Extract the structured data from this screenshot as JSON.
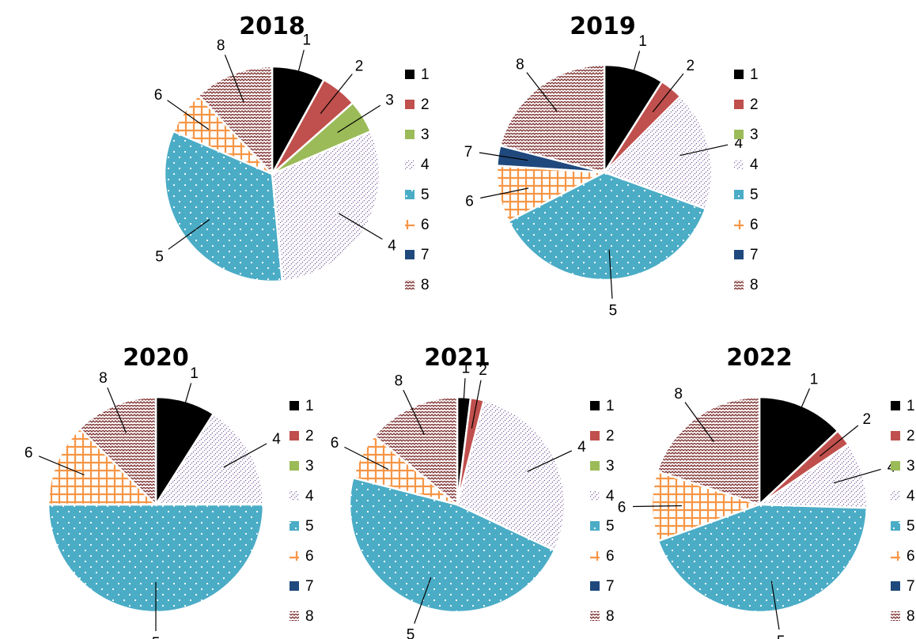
{
  "chart_data": [
    {
      "type": "pie",
      "title": "2018",
      "slices": [
        {
          "category": "1",
          "value": 8.0
        },
        {
          "category": "2",
          "value": 5.5
        },
        {
          "category": "3",
          "value": 5.0
        },
        {
          "category": "4",
          "value": 30.0
        },
        {
          "category": "5",
          "value": 33.0
        },
        {
          "category": "6",
          "value": 6.5
        },
        {
          "category": "7",
          "value": 0
        },
        {
          "category": "8",
          "value": 12.0
        }
      ],
      "legend": [
        "1",
        "2",
        "3",
        "4",
        "5",
        "6",
        "7",
        "8"
      ],
      "legend_position": "right"
    },
    {
      "type": "pie",
      "title": "2019",
      "slices": [
        {
          "category": "1",
          "value": 9.0
        },
        {
          "category": "2",
          "value": 3.5
        },
        {
          "category": "3",
          "value": 0
        },
        {
          "category": "4",
          "value": 18.0
        },
        {
          "category": "5",
          "value": 37.0
        },
        {
          "category": "6",
          "value": 8.5
        },
        {
          "category": "7",
          "value": 3.0
        },
        {
          "category": "8",
          "value": 21.0
        }
      ],
      "legend": [
        "1",
        "2",
        "3",
        "4",
        "5",
        "6",
        "7",
        "8"
      ],
      "legend_position": "right"
    },
    {
      "type": "pie",
      "title": "2020",
      "slices": [
        {
          "category": "1",
          "value": 9.0
        },
        {
          "category": "2",
          "value": 0
        },
        {
          "category": "3",
          "value": 0
        },
        {
          "category": "4",
          "value": 16.0
        },
        {
          "category": "5",
          "value": 50.0
        },
        {
          "category": "6",
          "value": 12.5
        },
        {
          "category": "7",
          "value": 0
        },
        {
          "category": "8",
          "value": 12.5
        }
      ],
      "legend": [
        "1",
        "2",
        "3",
        "4",
        "5",
        "6",
        "7",
        "8"
      ],
      "legend_position": "right"
    },
    {
      "type": "pie",
      "title": "2021",
      "slices": [
        {
          "category": "1",
          "value": 2.0
        },
        {
          "category": "2",
          "value": 2.0
        },
        {
          "category": "3",
          "value": 0
        },
        {
          "category": "4",
          "value": 28.0
        },
        {
          "category": "5",
          "value": 47.0
        },
        {
          "category": "6",
          "value": 7.0
        },
        {
          "category": "7",
          "value": 0
        },
        {
          "category": "8",
          "value": 14.0
        }
      ],
      "legend": [
        "1",
        "2",
        "3",
        "4",
        "5",
        "6",
        "7",
        "8"
      ],
      "legend_position": "right"
    },
    {
      "type": "pie",
      "title": "2022",
      "slices": [
        {
          "category": "1",
          "value": 13.0
        },
        {
          "category": "2",
          "value": 2.5
        },
        {
          "category": "3",
          "value": 0
        },
        {
          "category": "4",
          "value": 10.0
        },
        {
          "category": "5",
          "value": 44.0
        },
        {
          "category": "6",
          "value": 10.5
        },
        {
          "category": "7",
          "value": 0
        },
        {
          "category": "8",
          "value": 20.0
        }
      ],
      "legend": [
        "1",
        "2",
        "3",
        "4",
        "5",
        "6",
        "7",
        "8"
      ],
      "legend_position": "right"
    }
  ],
  "colors": {
    "1": "#000000",
    "2": "#c0504d",
    "3": "#9bbb59",
    "4": "#8064a2",
    "5": "#4bacc6",
    "6": "#f79646",
    "7": "#1f497d",
    "8": "#7b2c2c"
  },
  "hatches": {
    "1": "solid",
    "2": "solid",
    "3": "solid",
    "4": "diagonal-dots",
    "5": "white-dots",
    "6": "grid",
    "7": "solid",
    "8": "zigzag-dots"
  }
}
